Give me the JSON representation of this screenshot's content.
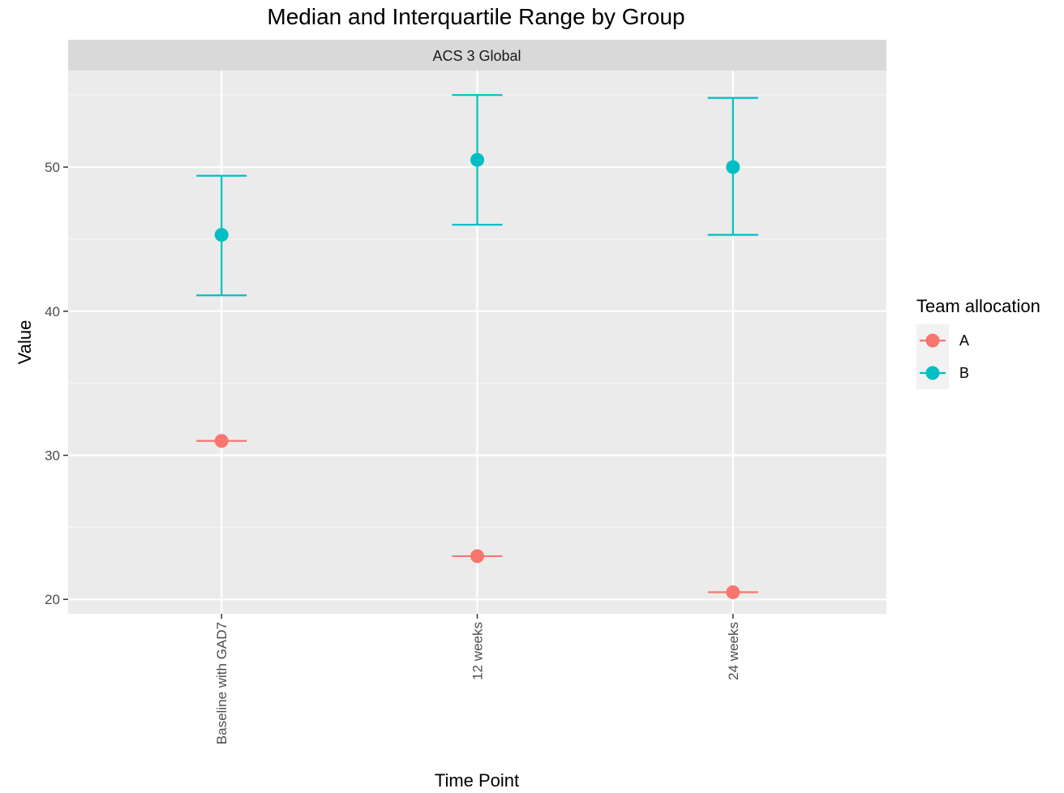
{
  "chart_data": {
    "type": "scatter",
    "title": "Median and Interquartile Range by Group",
    "facet_label": "ACS 3 Global",
    "xlabel": "Time Point",
    "ylabel": "Value",
    "categories": [
      "Baseline with GAD7",
      "12 weeks",
      "24 weeks"
    ],
    "ylim": [
      19.0,
      56.7
    ],
    "y_ticks": [
      20,
      30,
      40,
      50
    ],
    "grid": true,
    "legend": {
      "title": "Team allocation",
      "position": "right"
    },
    "series": [
      {
        "name": "A",
        "color": "#F8766D",
        "median": [
          31.0,
          23.0,
          20.5
        ],
        "q1": [
          31.0,
          23.0,
          20.5
        ],
        "q3": [
          31.0,
          23.0,
          20.5
        ]
      },
      {
        "name": "B",
        "color": "#00BFC4",
        "median": [
          45.3,
          50.5,
          50.0
        ],
        "q1": [
          41.1,
          46.0,
          45.3
        ],
        "q3": [
          49.4,
          55.0,
          54.8
        ]
      }
    ]
  }
}
